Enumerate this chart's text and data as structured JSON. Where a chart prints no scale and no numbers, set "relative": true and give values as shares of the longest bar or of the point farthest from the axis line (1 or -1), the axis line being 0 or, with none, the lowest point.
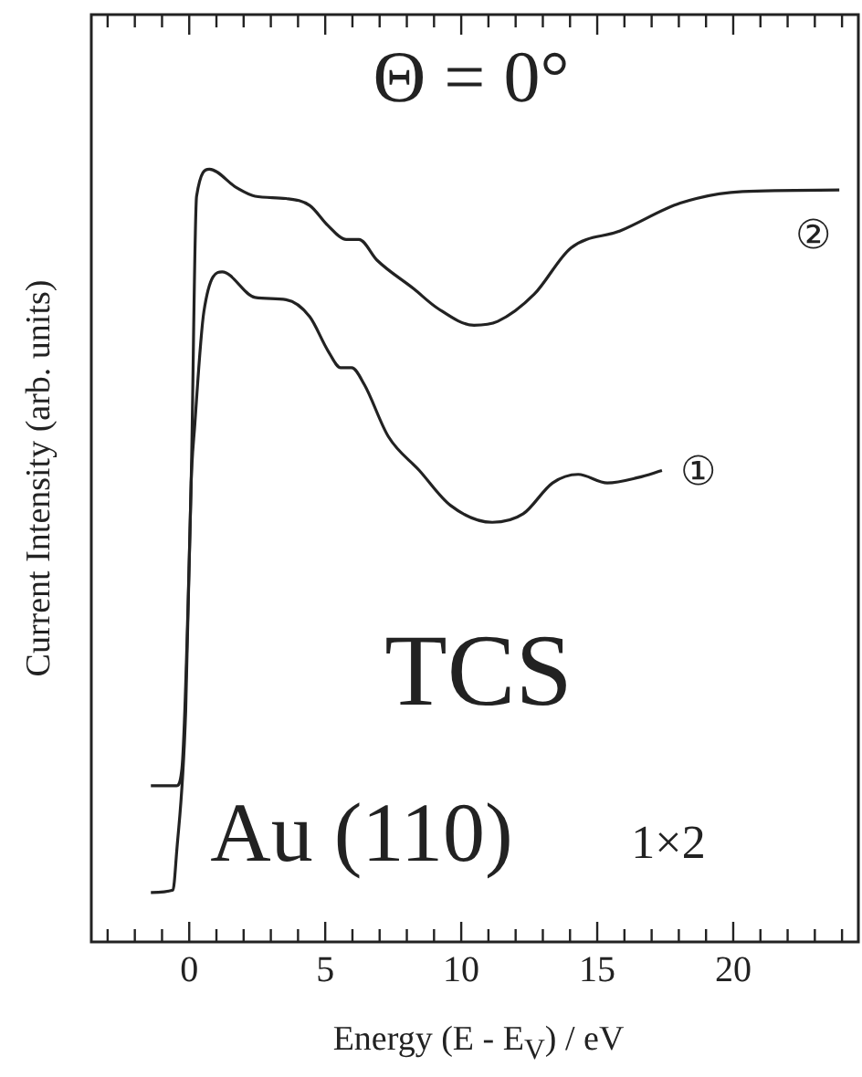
{
  "chart_data": {
    "type": "line",
    "relative": true,
    "xlabel": "Energy (E - E$_{V}$) / eV",
    "ylabel": "Current Intensity (arb. units)",
    "annotations": [
      "Θ = 0°",
      "TCS",
      "Au (110)",
      "1×2"
    ],
    "xlim": [
      -3.6,
      24.6
    ],
    "xticks": [
      {
        "value": -3,
        "label": null
      },
      {
        "value": -2,
        "label": null
      },
      {
        "value": -1,
        "label": null
      },
      0,
      {
        "value": 1,
        "label": null
      },
      {
        "value": 2,
        "label": null
      },
      {
        "value": 3,
        "label": null
      },
      {
        "value": 4,
        "label": null
      },
      5,
      {
        "value": 6,
        "label": null
      },
      {
        "value": 7,
        "label": null
      },
      {
        "value": 8,
        "label": null
      },
      {
        "value": 9,
        "label": null
      },
      10,
      {
        "value": 11,
        "label": null
      },
      {
        "value": 12,
        "label": null
      },
      {
        "value": 13,
        "label": null
      },
      {
        "value": 14,
        "label": null
      },
      15,
      {
        "value": 16,
        "label": null
      },
      {
        "value": 17,
        "label": null
      },
      {
        "value": 18,
        "label": null
      },
      {
        "value": 19,
        "label": null
      },
      20,
      {
        "value": 21,
        "label": null
      },
      {
        "value": 22,
        "label": null
      },
      {
        "value": 23,
        "label": null
      },
      {
        "value": 24,
        "label": null
      }
    ],
    "tick_labels": "x",
    "grid": false,
    "legend": false,
    "marker": "none",
    "line_style": "solid",
    "series": [
      {
        "name": "①",
        "color": "#222222",
        "x": [
          -1.41,
          -0.6,
          -0.47,
          -0.13,
          0.07,
          0.2,
          0.54,
          1.21,
          2.42,
          3.56,
          4.43,
          5.1,
          5.57,
          5.97,
          6.44,
          7.32,
          8.46,
          9.6,
          11.14,
          12.28,
          13.36,
          14.3,
          15.37,
          16.51,
          17.38
        ],
        "values": [
          0.064,
          0.067,
          0.113,
          0.299,
          0.594,
          0.667,
          0.816,
          0.867,
          0.834,
          0.831,
          0.809,
          0.765,
          0.743,
          0.743,
          0.721,
          0.654,
          0.61,
          0.565,
          0.543,
          0.554,
          0.594,
          0.605,
          0.594,
          0.601,
          0.61
        ]
      },
      {
        "name": "②",
        "color": "#222222",
        "x": [
          -1.41,
          -0.47,
          -0.27,
          0.07,
          0.27,
          0.74,
          1.74,
          2.42,
          3.56,
          4.43,
          5.1,
          5.77,
          6.24,
          6.91,
          8.26,
          9.13,
          10.47,
          11.34,
          12.68,
          14.03,
          15.84,
          18.05,
          20.34,
          23.9
        ],
        "values": [
          0.202,
          0.202,
          0.224,
          0.594,
          0.965,
          1.0,
          0.976,
          0.965,
          0.962,
          0.953,
          0.927,
          0.909,
          0.909,
          0.882,
          0.845,
          0.82,
          0.798,
          0.803,
          0.838,
          0.898,
          0.92,
          0.956,
          0.971,
          0.973
        ]
      }
    ]
  }
}
